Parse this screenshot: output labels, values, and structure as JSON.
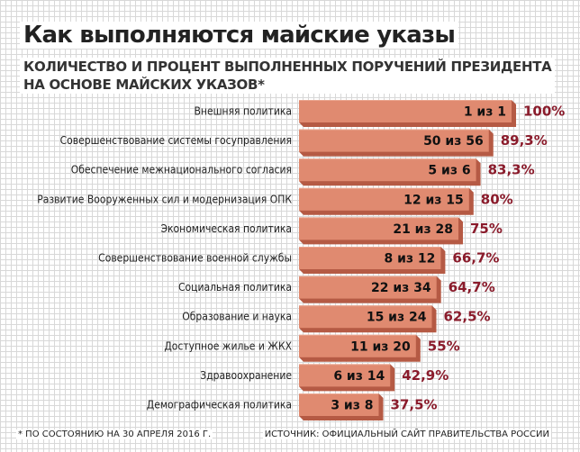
{
  "header": {
    "title": "Как выполняются майские указы",
    "subtitle_line1": "КОЛИЧЕСТВО И ПРОЦЕНТ ВЫПОЛНЕННЫХ ПОРУЧЕНИЙ ПРЕЗИДЕНТА",
    "subtitle_line2": "НА ОСНОВЕ МАЙСКИХ УКАЗОВ*"
  },
  "footer": {
    "note": "* ПО СОСТОЯНИЮ НА 30 АПРЕЛЯ 2016 Г.",
    "source": "ИСТОЧНИК: ОФИЦИАЛЬНЫЙ САЙТ ПРАВИТЕЛЬСТВА РОССИИ"
  },
  "colors": {
    "bar_fill": "#e08a70",
    "bar_edge": "#b55a44",
    "percent_text": "#8a1b2b"
  },
  "chart_data": {
    "type": "bar",
    "orientation": "horizontal",
    "title": "Как выполняются майские указы",
    "subtitle": "КОЛИЧЕСТВО И ПРОЦЕНТ ВЫПОЛНЕННЫХ ПОРУЧЕНИЙ ПРЕЗИДЕНТА НА ОСНОВЕ МАЙСКИХ УКАЗОВ*",
    "xlim": [
      0,
      100
    ],
    "grid": false,
    "categories": [
      "Внешняя политика",
      "Совершенствование системы госуправления",
      "Обеспечение межнационального согласия",
      "Развитие Вооруженных сил и модернизация ОПК",
      "Экономическая политика",
      "Совершенствование военной службы",
      "Социальная политика",
      "Образование и наука",
      "Доступное жилье и ЖКХ",
      "Здравоохранение",
      "Демографическая политика"
    ],
    "values": [
      100,
      89.3,
      83.3,
      80,
      75,
      66.7,
      64.7,
      62.5,
      55,
      42.9,
      37.5
    ],
    "bar_labels": [
      "1 из 1",
      "50 из 56",
      "5 из 6",
      "12 из 15",
      "21 из 28",
      "8 из 12",
      "22 из 34",
      "15 из 24",
      "11 из 20",
      "6 из 14",
      "3 из 8"
    ],
    "value_labels": [
      "100%",
      "89,3%",
      "83,3%",
      "80%",
      "75%",
      "66,7%",
      "64,7%",
      "62,5%",
      "55%",
      "42,9%",
      "37,5%"
    ]
  }
}
